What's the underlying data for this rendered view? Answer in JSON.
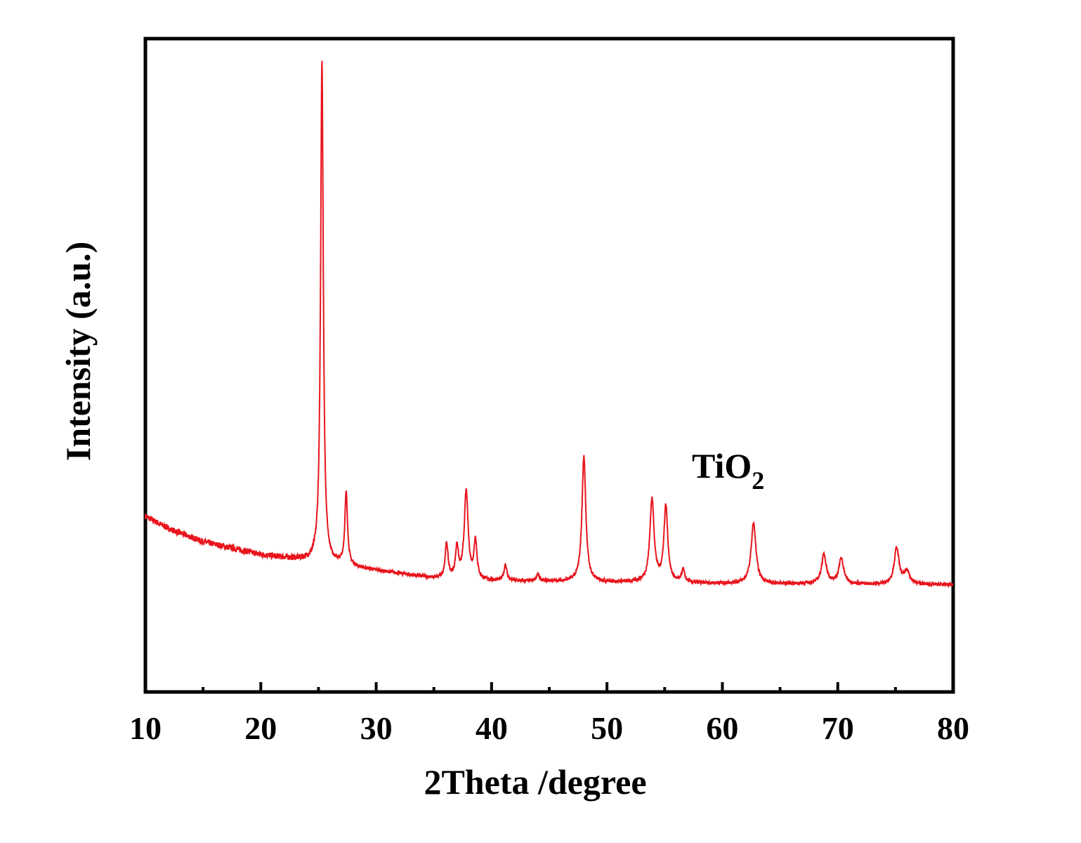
{
  "chart_data": {
    "type": "line",
    "title": "",
    "xlabel": "2Theta /degree",
    "ylabel": "Intensity (a.u.)",
    "xlim": [
      10,
      80
    ],
    "ylim": [
      0,
      100
    ],
    "x_ticks": [
      "10",
      "20",
      "30",
      "40",
      "50",
      "60",
      "70",
      "80"
    ],
    "x_minor_tick_step": 5,
    "y_ticks": [],
    "grid": false,
    "annotation": {
      "text": "TiO",
      "subscript": "2"
    },
    "series": [
      {
        "name": "TiO2",
        "color": "#e8141c",
        "baseline": [
          [
            10,
            26.9
          ],
          [
            12,
            25.0
          ],
          [
            15,
            23.0
          ],
          [
            20,
            21.0
          ],
          [
            25,
            19.9
          ],
          [
            30,
            18.6
          ],
          [
            35,
            17.4
          ],
          [
            40,
            17.0
          ],
          [
            50,
            16.8
          ],
          [
            60,
            16.6
          ],
          [
            70,
            16.5
          ],
          [
            80,
            16.4
          ]
        ],
        "peaks": [
          {
            "x": 25.3,
            "y": 96.6,
            "width": 0.14
          },
          {
            "x": 27.4,
            "y": 30.3,
            "width": 0.14
          },
          {
            "x": 36.1,
            "y": 22.6,
            "width": 0.15
          },
          {
            "x": 37.0,
            "y": 22.0,
            "width": 0.15
          },
          {
            "x": 37.8,
            "y": 30.6,
            "width": 0.2
          },
          {
            "x": 38.6,
            "y": 23.0,
            "width": 0.15
          },
          {
            "x": 41.2,
            "y": 19.4,
            "width": 0.15
          },
          {
            "x": 44.0,
            "y": 18.0,
            "width": 0.15
          },
          {
            "x": 48.0,
            "y": 36.0,
            "width": 0.2
          },
          {
            "x": 53.9,
            "y": 29.4,
            "width": 0.22
          },
          {
            "x": 55.1,
            "y": 28.3,
            "width": 0.2
          },
          {
            "x": 56.6,
            "y": 18.6,
            "width": 0.15
          },
          {
            "x": 62.7,
            "y": 25.8,
            "width": 0.25
          },
          {
            "x": 68.8,
            "y": 21.0,
            "width": 0.25
          },
          {
            "x": 70.3,
            "y": 20.4,
            "width": 0.25
          },
          {
            "x": 75.1,
            "y": 22.0,
            "width": 0.25
          },
          {
            "x": 76.0,
            "y": 18.3,
            "width": 0.3
          }
        ]
      }
    ]
  }
}
